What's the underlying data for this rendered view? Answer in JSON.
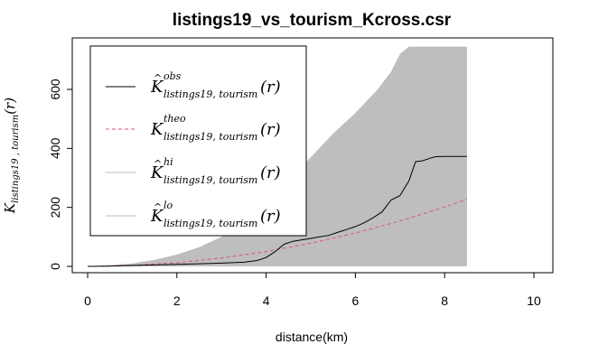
{
  "chart_data": {
    "type": "line",
    "title": "listings19_vs_tourism_Kcross.csr",
    "xlabel": "distance(km)",
    "ylabel": {
      "base": "K",
      "subscript": "listings19 , tourism",
      "suffix": "(r)"
    },
    "xlim": [
      0,
      10
    ],
    "ylim": [
      0,
      750
    ],
    "xticks": [
      0,
      2,
      4,
      6,
      8,
      10
    ],
    "yticks": [
      0,
      200,
      400,
      600
    ],
    "grid": false,
    "legend_position": "top-left",
    "colors": {
      "obs": "#000000",
      "theo": "#DF536B",
      "envelope": "#BEBEBE"
    },
    "legend": [
      {
        "key": "obs",
        "base": "K",
        "hat": true,
        "sup": "obs",
        "sub": "listings19, tourism",
        "suffix": "(r)",
        "color": "#000000",
        "style": "solid"
      },
      {
        "key": "theo",
        "base": "K",
        "hat": false,
        "sup": "theo",
        "sub": "listings19, tourism",
        "suffix": "(r)",
        "color": "#DF536B",
        "style": "dashed"
      },
      {
        "key": "hi",
        "base": "K",
        "hat": true,
        "sup": "hi",
        "sub": "listings19, tourism",
        "suffix": "(r)",
        "color": "#BEBEBE",
        "style": "solid"
      },
      {
        "key": "lo",
        "base": "K",
        "hat": true,
        "sup": "lo",
        "sub": "listings19, tourism",
        "suffix": "(r)",
        "color": "#BEBEBE",
        "style": "solid"
      }
    ],
    "series": [
      {
        "key": "obs",
        "x": [
          0,
          0.5,
          1,
          1.5,
          2,
          2.5,
          3,
          3.5,
          3.8,
          4.0,
          4.2,
          4.4,
          4.6,
          4.8,
          5.0,
          5.2,
          5.4,
          5.6,
          5.8,
          6.0,
          6.2,
          6.4,
          6.6,
          6.8,
          7.0,
          7.2,
          7.35,
          7.5,
          7.7,
          7.8,
          8.0,
          8.2,
          8.5
        ],
        "y": [
          0,
          1,
          3,
          5,
          7,
          9,
          11,
          14,
          20,
          30,
          50,
          75,
          85,
          90,
          95,
          100,
          105,
          115,
          125,
          135,
          148,
          165,
          185,
          225,
          240,
          290,
          355,
          358,
          368,
          372,
          373,
          373,
          373
        ]
      },
      {
        "key": "theo",
        "x": [
          0,
          1,
          2,
          3,
          4,
          5,
          6,
          7,
          8,
          8.5
        ],
        "y": [
          0,
          3.1,
          12.6,
          28.3,
          50.3,
          78.5,
          113.1,
          153.9,
          201.1,
          227.0
        ]
      },
      {
        "key": "hi",
        "x": [
          0,
          0.5,
          1,
          1.5,
          2,
          2.5,
          3,
          3.5,
          4,
          4.5,
          5,
          5.5,
          6,
          6.5,
          6.8,
          7.0,
          7.2,
          8.5
        ],
        "y": [
          0,
          4,
          10,
          22,
          40,
          65,
          100,
          150,
          210,
          290,
          370,
          450,
          520,
          600,
          660,
          720,
          745,
          745
        ]
      },
      {
        "key": "lo",
        "x": [
          0,
          8.5
        ],
        "y": [
          0,
          0
        ]
      }
    ]
  }
}
